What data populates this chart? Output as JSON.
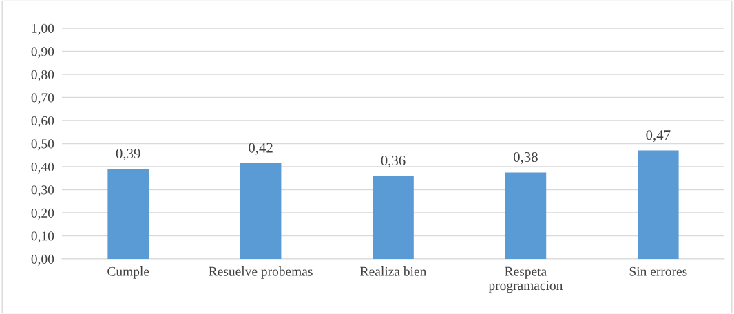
{
  "chart_data": {
    "type": "bar",
    "categories": [
      "Cumple",
      "Resuelve probemas",
      "Realiza bien",
      "Respeta\nprogramacion",
      "Sin errores"
    ],
    "values": [
      0.39,
      0.415,
      0.36,
      0.375,
      0.47
    ],
    "value_labels": [
      "0,39",
      "0,42",
      "0,36",
      "0,38",
      "0,47"
    ],
    "color": "#5b9bd5",
    "ylim": [
      0,
      1.0
    ],
    "yticks": [
      {
        "value": 0,
        "label": "0,00"
      },
      {
        "value": 0.1,
        "label": "0,10"
      },
      {
        "value": 0.2,
        "label": "0,20"
      },
      {
        "value": 0.3,
        "label": "0,30"
      },
      {
        "value": 0.4,
        "label": "0,40"
      },
      {
        "value": 0.5,
        "label": "0,50"
      },
      {
        "value": 0.6,
        "label": "0,60"
      },
      {
        "value": 0.7,
        "label": "0,70"
      },
      {
        "value": 0.8,
        "label": "0,80"
      },
      {
        "value": 0.9,
        "label": "0,90"
      },
      {
        "value": 1.0,
        "label": "1,00"
      }
    ],
    "grid": "y",
    "legend": false
  }
}
